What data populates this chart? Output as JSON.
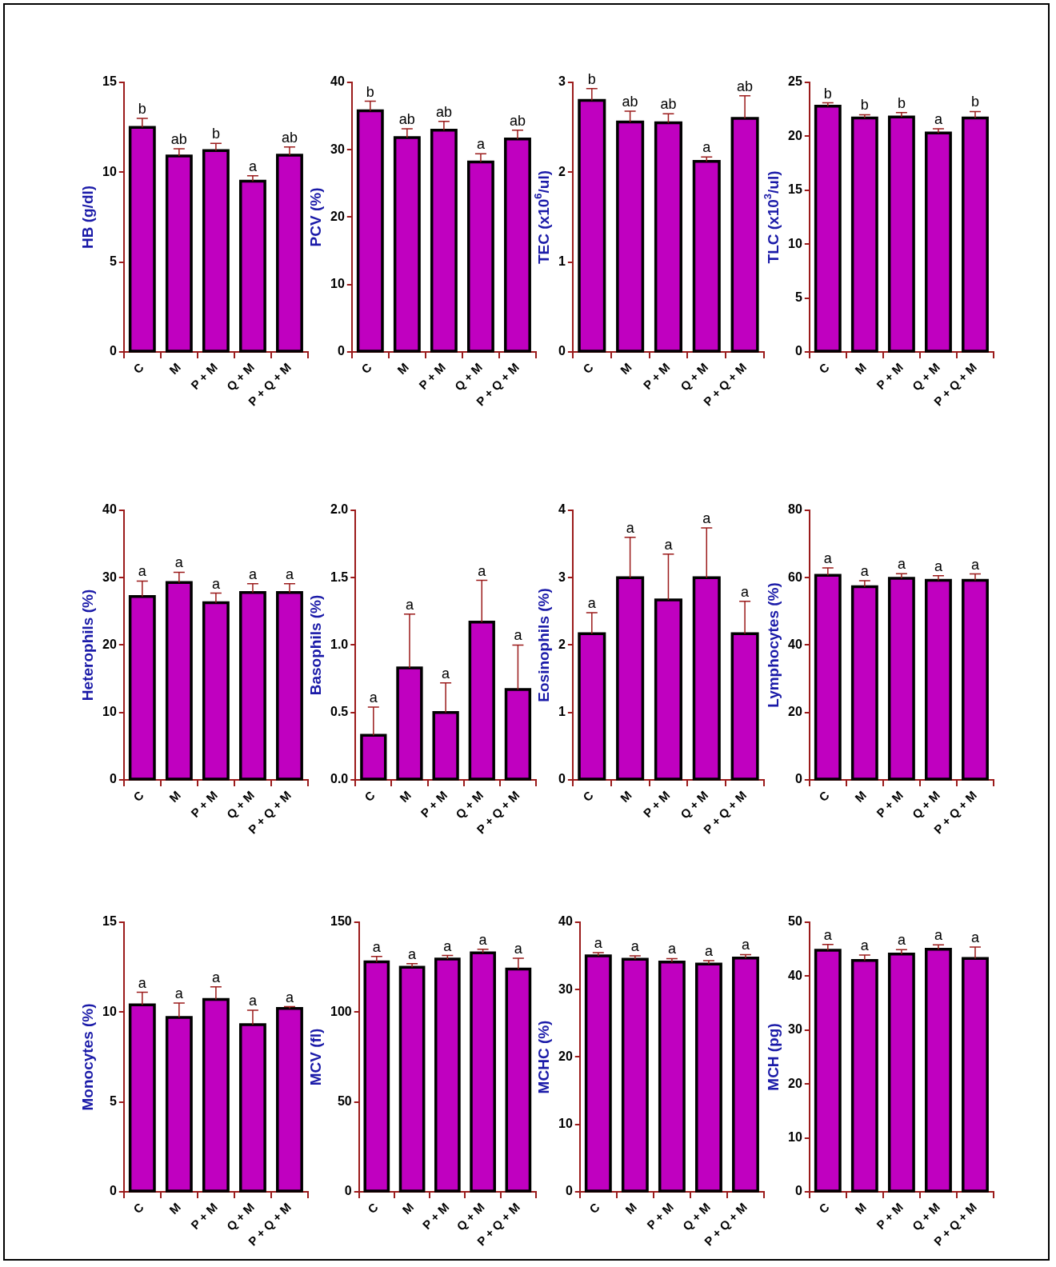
{
  "chart_data": [
    {
      "type": "bar",
      "ylabel": "HB (g/dl)",
      "categories": [
        "C",
        "M",
        "P + M",
        "Q + M",
        "P + Q + M"
      ],
      "values": [
        12.5,
        10.9,
        11.2,
        9.5,
        10.95
      ],
      "errors": [
        0.5,
        0.4,
        0.4,
        0.3,
        0.45
      ],
      "color": "#c000c0",
      "ylim": [
        0,
        15
      ],
      "yticks": [
        0,
        5,
        10,
        15
      ],
      "annotations": [
        {
          "text": "b",
          "x": "C",
          "y": 13.0
        },
        {
          "text": "ab",
          "x": "M",
          "y": 11.3
        },
        {
          "text": "b",
          "x": "P + M",
          "y": 11.6
        },
        {
          "text": "a",
          "x": "Q + M",
          "y": 9.8
        },
        {
          "text": "ab",
          "x": "P + Q + M",
          "y": 11.4
        }
      ]
    },
    {
      "type": "bar",
      "ylabel": "PCV (%)",
      "categories": [
        "C",
        "M",
        "P + M",
        "Q + M",
        "P + Q + M"
      ],
      "values": [
        35.8,
        31.8,
        32.9,
        28.2,
        31.6
      ],
      "errors": [
        1.4,
        1.3,
        1.3,
        1.2,
        1.3
      ],
      "color": "#c000c0",
      "ylim": [
        0,
        40
      ],
      "yticks": [
        0,
        10,
        20,
        30,
        40
      ],
      "annotations": [
        {
          "text": "b",
          "x": "C",
          "y": 37.2
        },
        {
          "text": "ab",
          "x": "M",
          "y": 33.1
        },
        {
          "text": "ab",
          "x": "P + M",
          "y": 34.2
        },
        {
          "text": "a",
          "x": "Q + M",
          "y": 29.4
        },
        {
          "text": "ab",
          "x": "P + Q + M",
          "y": 32.9
        }
      ]
    },
    {
      "type": "bar",
      "ylabel": "TEC (x10$^{6}$/ul)",
      "categories": [
        "C",
        "M",
        "P + M",
        "Q + M",
        "P + Q + M"
      ],
      "values": [
        2.8,
        2.56,
        2.55,
        2.12,
        2.6
      ],
      "errors": [
        0.13,
        0.12,
        0.1,
        0.05,
        0.25
      ],
      "color": "#c000c0",
      "ylim": [
        0,
        3
      ],
      "yticks": [
        0,
        1,
        2,
        3
      ],
      "annotations": [
        {
          "text": "b",
          "x": "C",
          "y": 2.93
        },
        {
          "text": "ab",
          "x": "M",
          "y": 2.68
        },
        {
          "text": "ab",
          "x": "P + M",
          "y": 2.65
        },
        {
          "text": "a",
          "x": "Q + M",
          "y": 2.17
        },
        {
          "text": "ab",
          "x": "P + Q + M",
          "y": 2.85
        }
      ]
    },
    {
      "type": "bar",
      "ylabel": "TLC (x10$^{3}$/ul)",
      "categories": [
        "C",
        "M",
        "P + M",
        "Q + M",
        "P + Q + M"
      ],
      "values": [
        22.8,
        21.7,
        21.8,
        20.3,
        21.7
      ],
      "errors": [
        0.3,
        0.3,
        0.4,
        0.4,
        0.6
      ],
      "color": "#c000c0",
      "ylim": [
        0,
        25
      ],
      "yticks": [
        0,
        5,
        10,
        15,
        20,
        25
      ],
      "annotations": [
        {
          "text": "b",
          "x": "C",
          "y": 23.1
        },
        {
          "text": "b",
          "x": "M",
          "y": 22.0
        },
        {
          "text": "b",
          "x": "P + M",
          "y": 22.2
        },
        {
          "text": "a",
          "x": "Q + M",
          "y": 20.7
        },
        {
          "text": "b",
          "x": "P + Q + M",
          "y": 22.3
        }
      ]
    },
    {
      "type": "bar",
      "ylabel": "Heterophils (%)",
      "categories": [
        "C",
        "M",
        "P + M",
        "Q + M",
        "P + Q + M"
      ],
      "values": [
        27.2,
        29.3,
        26.3,
        27.8,
        27.8
      ],
      "errors": [
        2.3,
        1.5,
        1.4,
        1.3,
        1.3
      ],
      "color": "#c000c0",
      "ylim": [
        0,
        40
      ],
      "yticks": [
        0,
        10,
        20,
        30,
        40
      ],
      "annotations": [
        {
          "text": "a",
          "x": "C",
          "y": 29.5
        },
        {
          "text": "a",
          "x": "M",
          "y": 30.8
        },
        {
          "text": "a",
          "x": "P + M",
          "y": 27.7
        },
        {
          "text": "a",
          "x": "Q + M",
          "y": 29.1
        },
        {
          "text": "a",
          "x": "P + Q + M",
          "y": 29.1
        }
      ]
    },
    {
      "type": "bar",
      "ylabel": "Basophils (%)",
      "categories": [
        "C",
        "M",
        "P + M",
        "Q + M",
        "P + Q + M"
      ],
      "values": [
        0.33,
        0.83,
        0.5,
        1.17,
        0.67
      ],
      "errors": [
        0.21,
        0.4,
        0.22,
        0.31,
        0.33
      ],
      "color": "#c000c0",
      "ylim": [
        0,
        2
      ],
      "yticks": [
        {
          "value": 0,
          "label": "0.0"
        },
        {
          "value": 0.5,
          "label": "0.5"
        },
        {
          "value": 1,
          "label": "1.0"
        },
        {
          "value": 1.5,
          "label": "1.5"
        },
        {
          "value": 2,
          "label": "2.0"
        }
      ],
      "annotations": [
        {
          "text": "a",
          "x": "C",
          "y": 0.54
        },
        {
          "text": "a",
          "x": "M",
          "y": 1.23
        },
        {
          "text": "a",
          "x": "P + M",
          "y": 0.72
        },
        {
          "text": "a",
          "x": "Q + M",
          "y": 1.48
        },
        {
          "text": "a",
          "x": "P + Q + M",
          "y": 1.0
        }
      ]
    },
    {
      "type": "bar",
      "ylabel": "Eosinophils (%)",
      "categories": [
        "C",
        "M",
        "P + M",
        "Q + M",
        "P + Q + M"
      ],
      "values": [
        2.17,
        3.0,
        2.67,
        3.0,
        2.17
      ],
      "errors": [
        0.31,
        0.6,
        0.68,
        0.74,
        0.48
      ],
      "color": "#c000c0",
      "ylim": [
        0,
        4
      ],
      "yticks": [
        0,
        1,
        2,
        3,
        4
      ],
      "annotations": [
        {
          "text": "a",
          "x": "C",
          "y": 2.48
        },
        {
          "text": "a",
          "x": "M",
          "y": 3.6
        },
        {
          "text": "a",
          "x": "P + M",
          "y": 3.35
        },
        {
          "text": "a",
          "x": "Q + M",
          "y": 3.74
        },
        {
          "text": "a",
          "x": "P + Q + M",
          "y": 2.65
        }
      ]
    },
    {
      "type": "bar",
      "ylabel": "Lymphocytes (%)",
      "categories": [
        "C",
        "M",
        "P + M",
        "Q + M",
        "P + Q + M"
      ],
      "values": [
        60.7,
        57.3,
        59.8,
        59.2,
        59.2
      ],
      "errors": [
        2.2,
        1.8,
        1.4,
        1.4,
        1.9
      ],
      "color": "#c000c0",
      "ylim": [
        0,
        80
      ],
      "yticks": [
        0,
        20,
        40,
        60,
        80
      ],
      "annotations": [
        {
          "text": "a",
          "x": "C",
          "y": 62.9
        },
        {
          "text": "a",
          "x": "M",
          "y": 59.1
        },
        {
          "text": "a",
          "x": "P + M",
          "y": 61.2
        },
        {
          "text": "a",
          "x": "Q + M",
          "y": 60.6
        },
        {
          "text": "a",
          "x": "P + Q + M",
          "y": 61.1
        }
      ]
    },
    {
      "type": "bar",
      "ylabel": "Monocytes (%)",
      "categories": [
        "C",
        "M",
        "P + M",
        "Q + M",
        "P + Q + M"
      ],
      "values": [
        10.4,
        9.7,
        10.7,
        9.3,
        10.2
      ],
      "errors": [
        0.7,
        0.8,
        0.7,
        0.8,
        0.1
      ],
      "color": "#c000c0",
      "ylim": [
        0,
        15
      ],
      "yticks": [
        0,
        5,
        10,
        15
      ],
      "annotations": [
        {
          "text": "a",
          "x": "C",
          "y": 11.1
        },
        {
          "text": "a",
          "x": "M",
          "y": 10.5
        },
        {
          "text": "a",
          "x": "P + M",
          "y": 11.4
        },
        {
          "text": "a",
          "x": "Q + M",
          "y": 10.1
        },
        {
          "text": "a",
          "x": "P + Q + M",
          "y": 10.3
        }
      ]
    },
    {
      "type": "bar",
      "ylabel": "MCV (fl)",
      "categories": [
        "C",
        "M",
        "P + M",
        "Q + M",
        "P + Q + M"
      ],
      "values": [
        128,
        125,
        129.5,
        133,
        124
      ],
      "errors": [
        3,
        2,
        2,
        2,
        6
      ],
      "color": "#c000c0",
      "ylim": [
        0,
        150
      ],
      "yticks": [
        0,
        50,
        100,
        150
      ],
      "annotations": [
        {
          "text": "a",
          "x": "C",
          "y": 131
        },
        {
          "text": "a",
          "x": "M",
          "y": 127
        },
        {
          "text": "a",
          "x": "P + M",
          "y": 131.5
        },
        {
          "text": "a",
          "x": "Q + M",
          "y": 135
        },
        {
          "text": "a",
          "x": "P + Q + M",
          "y": 130
        }
      ]
    },
    {
      "type": "bar",
      "ylabel": "MCHC (%)",
      "categories": [
        "C",
        "M",
        "P + M",
        "Q + M",
        "P + Q + M"
      ],
      "values": [
        35.0,
        34.5,
        34.1,
        33.8,
        34.7
      ],
      "errors": [
        0.5,
        0.5,
        0.5,
        0.5,
        0.5
      ],
      "color": "#c000c0",
      "ylim": [
        0,
        40
      ],
      "yticks": [
        0,
        10,
        20,
        30,
        40
      ],
      "annotations": [
        {
          "text": "a",
          "x": "C",
          "y": 35.5
        },
        {
          "text": "a",
          "x": "M",
          "y": 35.0
        },
        {
          "text": "a",
          "x": "P + M",
          "y": 34.6
        },
        {
          "text": "a",
          "x": "Q + M",
          "y": 34.3
        },
        {
          "text": "a",
          "x": "P + Q + M",
          "y": 35.2
        }
      ]
    },
    {
      "type": "bar",
      "ylabel": "MCH (pg)",
      "categories": [
        "C",
        "M",
        "P + M",
        "Q + M",
        "P + Q + M"
      ],
      "values": [
        44.8,
        42.9,
        44.1,
        45.0,
        43.3
      ],
      "errors": [
        1.1,
        1.0,
        0.8,
        0.8,
        2.1
      ],
      "color": "#c000c0",
      "ylim": [
        0,
        50
      ],
      "yticks": [
        0,
        10,
        20,
        30,
        40,
        50
      ],
      "annotations": [
        {
          "text": "a",
          "x": "C",
          "y": 45.9
        },
        {
          "text": "a",
          "x": "M",
          "y": 43.9
        },
        {
          "text": "a",
          "x": "P + M",
          "y": 44.9
        },
        {
          "text": "a",
          "x": "Q + M",
          "y": 45.8
        },
        {
          "text": "a",
          "x": "P + Q + M",
          "y": 45.4
        }
      ]
    }
  ]
}
